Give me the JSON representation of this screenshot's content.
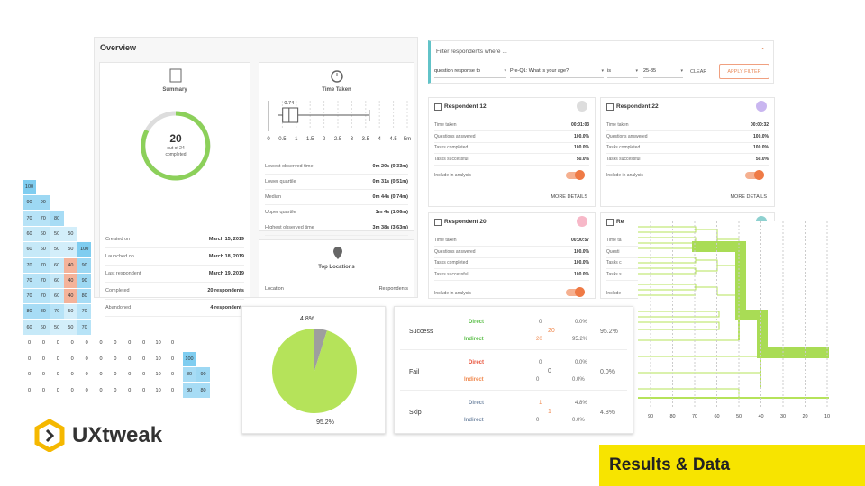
{
  "overview": {
    "title": "Overview",
    "summary": {
      "title": "Summary",
      "completed": "20",
      "total_label": "out of 24",
      "completed_label": "completed",
      "rows": [
        [
          "Created on",
          "March 15, 2019"
        ],
        [
          "Launched on",
          "March 18, 2019"
        ],
        [
          "Last respondent",
          "March 19, 2019"
        ],
        [
          "Completed",
          "20 respondents"
        ],
        [
          "Abandoned",
          "4 respondents"
        ]
      ]
    },
    "time_taken": {
      "title": "Time Taken",
      "xlim": [
        0,
        5
      ],
      "xticks": [
        0,
        0.5,
        1,
        1.5,
        2,
        2.5,
        3,
        3.5,
        4,
        4.5,
        {
          "value": 5,
          "label": "5m"
        }
      ],
      "box": {
        "low": 0.33,
        "q1": 0.51,
        "median": 0.74,
        "q3": 1.06,
        "high": 3.63
      },
      "median_label": "0.74",
      "rows": [
        [
          "Lowest observed time",
          "0m 20s (0.33m)"
        ],
        [
          "Lower quartile",
          "0m 31s (0.51m)"
        ],
        [
          "Median",
          "0m 44s (0.74m)"
        ],
        [
          "Upper quartile",
          "1m 4s (1.06m)"
        ],
        [
          "Highest observed time",
          "3m 38s (3.63m)"
        ]
      ]
    },
    "top_locations": {
      "title": "Top Locations",
      "columns": [
        "Location",
        "Respondents"
      ]
    }
  },
  "filter": {
    "title": "Filter respondents where ...",
    "fields": [
      "question response to",
      "Pre-Q1: What is your age?",
      "is",
      "25-35"
    ],
    "clear": "CLEAR",
    "apply": "APPLY FILTER"
  },
  "respondents": [
    {
      "name": "Respondent 12",
      "rows": [
        [
          "Time taken",
          "00:01:03"
        ],
        [
          "Questions answered",
          "100.0%"
        ],
        [
          "Tasks completed",
          "100.0%"
        ],
        [
          "Tasks successful",
          "50.0%"
        ]
      ],
      "include": "Include in analysis",
      "more": "MORE DETAILS"
    },
    {
      "name": "Respondent 22",
      "rows": [
        [
          "Time taken",
          "00:00:32"
        ],
        [
          "Questions answered",
          "100.0%"
        ],
        [
          "Tasks completed",
          "100.0%"
        ],
        [
          "Tasks successful",
          "50.0%"
        ]
      ],
      "include": "Include in analysis",
      "more": "MORE DETAILS"
    },
    {
      "name": "Respondent 20",
      "rows": [
        [
          "Time taken",
          "00:00:57"
        ],
        [
          "Questions answered",
          "100.0%"
        ],
        [
          "Tasks completed",
          "100.0%"
        ],
        [
          "Tasks successful",
          "100.0%"
        ]
      ],
      "include": "Include in analysis"
    },
    {
      "name": "Re",
      "rows": [
        [
          "Time ta",
          ""
        ],
        [
          "Questi",
          ""
        ],
        [
          "Tasks c",
          ""
        ],
        [
          "Tasks s",
          ""
        ]
      ],
      "include": "Include"
    }
  ],
  "matrix": [
    [
      "100"
    ],
    [
      "90",
      "90"
    ],
    [
      "70",
      "70",
      "80"
    ],
    [
      "60",
      "60",
      "50",
      "50"
    ],
    [
      "60",
      "60",
      "50",
      "50",
      "100"
    ],
    [
      "70",
      "70",
      "60",
      "40",
      "90"
    ],
    [
      "70",
      "70",
      "60",
      "40",
      "90"
    ],
    [
      "70",
      "70",
      "60",
      "40",
      "80"
    ],
    [
      "80",
      "80",
      "70",
      "50",
      "70"
    ],
    [
      "60",
      "60",
      "50",
      "50",
      "70"
    ]
  ],
  "zero_rows": [
    [
      "0",
      "0",
      "0",
      "0",
      "0",
      "0",
      "0",
      "0",
      "0",
      "10",
      "0"
    ],
    [
      "0",
      "0",
      "0",
      "0",
      "0",
      "0",
      "0",
      "0",
      "0",
      "10",
      "0",
      "100"
    ],
    [
      "0",
      "0",
      "0",
      "0",
      "0",
      "0",
      "0",
      "0",
      "0",
      "10",
      "0",
      "80",
      "90"
    ],
    [
      "0",
      "0",
      "0",
      "0",
      "0",
      "0",
      "0",
      "0",
      "0",
      "10",
      "0",
      "80",
      "80"
    ]
  ],
  "pie": {
    "values": [
      4.8,
      95.2
    ],
    "value_labels": [
      "4.8%",
      "95.2%"
    ],
    "colors": [
      "#9e9e9e",
      "#b5e35a"
    ]
  },
  "outcomes": [
    {
      "name": "Success",
      "direct": "Direct",
      "direct_count": "0",
      "direct_pct": "0.0%",
      "indirect": "Indirect",
      "indirect_count": "20",
      "indirect_pct": "95.2%",
      "count": "20",
      "total": "95.2%"
    },
    {
      "name": "Fail",
      "direct": "Direct",
      "direct_count": "0",
      "direct_pct": "0.0%",
      "indirect": "Indirect",
      "indirect_count": "0",
      "indirect_pct": "0.0%",
      "count": "0",
      "total": "0.0%"
    },
    {
      "name": "Skip",
      "direct": "Direct",
      "direct_count": "1",
      "direct_pct": "4.8%",
      "indirect": "Indirect",
      "indirect_count": "0",
      "indirect_pct": "0.0%",
      "count": "1",
      "total": "4.8%"
    }
  ],
  "dendrogram": {
    "xticks": [
      90,
      80,
      70,
      60,
      50,
      40,
      30,
      20,
      10
    ]
  },
  "logo": "UXtweak",
  "banner": "Results & Data"
}
